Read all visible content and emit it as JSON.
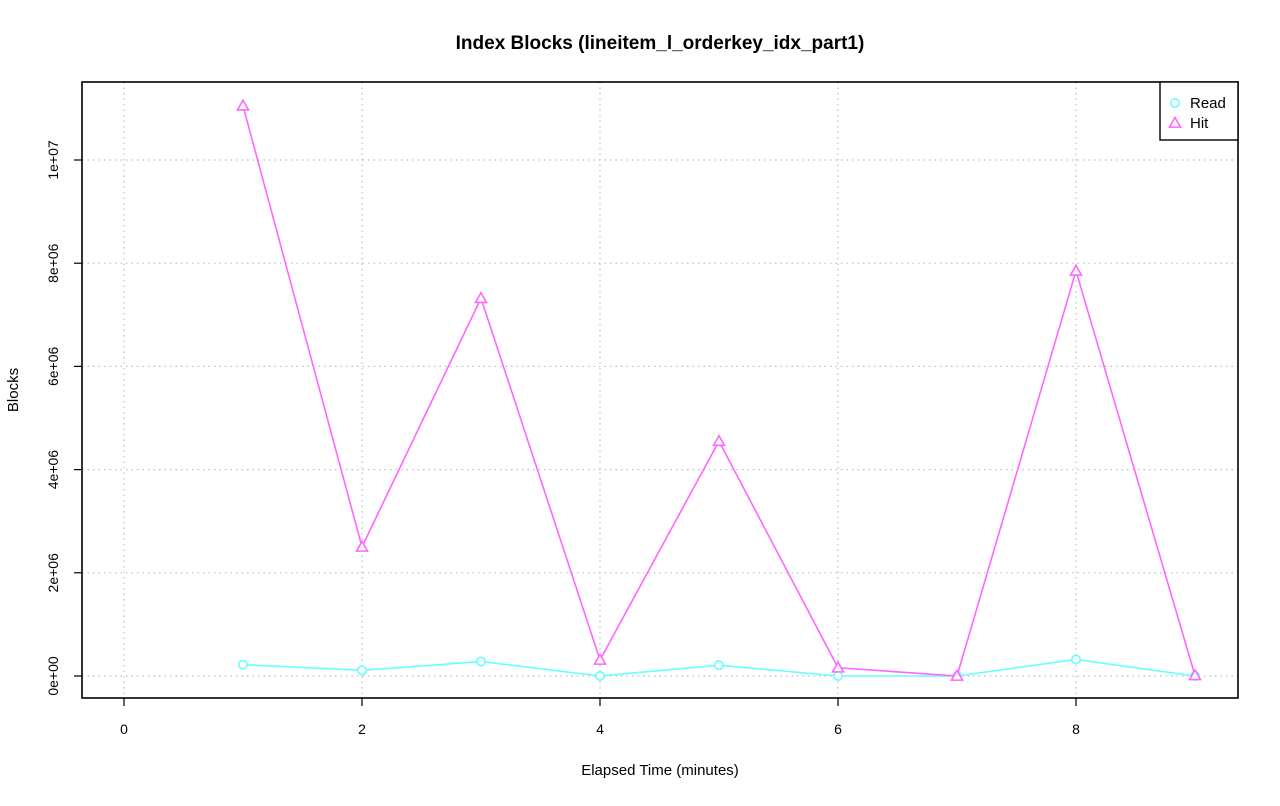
{
  "chart_data": {
    "type": "line",
    "title": "Index Blocks (lineitem_l_orderkey_idx_part1)",
    "xlabel": "Elapsed Time (minutes)",
    "ylabel": "Blocks",
    "xlim": [
      0,
      9
    ],
    "ylim": [
      0,
      11000000
    ],
    "x_ticks": [
      0,
      2,
      4,
      6,
      8
    ],
    "x_tick_labels": [
      "0",
      "2",
      "4",
      "6",
      "8"
    ],
    "y_ticks": [
      0,
      2000000,
      4000000,
      6000000,
      8000000,
      10000000
    ],
    "y_tick_labels": [
      "0e+00",
      "2e+06",
      "4e+06",
      "6e+06",
      "8e+06",
      "1e+07"
    ],
    "grid": true,
    "legend_position": "top-right",
    "x": [
      1,
      2,
      3,
      4,
      5,
      6,
      7,
      8,
      9
    ],
    "series": [
      {
        "name": "Read",
        "marker": "circle",
        "color": "#66ffff",
        "values": [
          220000,
          110000,
          280000,
          0,
          210000,
          0,
          0,
          320000,
          0
        ]
      },
      {
        "name": "Hit",
        "marker": "triangle",
        "color": "#ff66ff",
        "values": [
          11050000,
          2500000,
          7320000,
          310000,
          4550000,
          160000,
          0,
          7850000,
          10000
        ]
      }
    ]
  }
}
